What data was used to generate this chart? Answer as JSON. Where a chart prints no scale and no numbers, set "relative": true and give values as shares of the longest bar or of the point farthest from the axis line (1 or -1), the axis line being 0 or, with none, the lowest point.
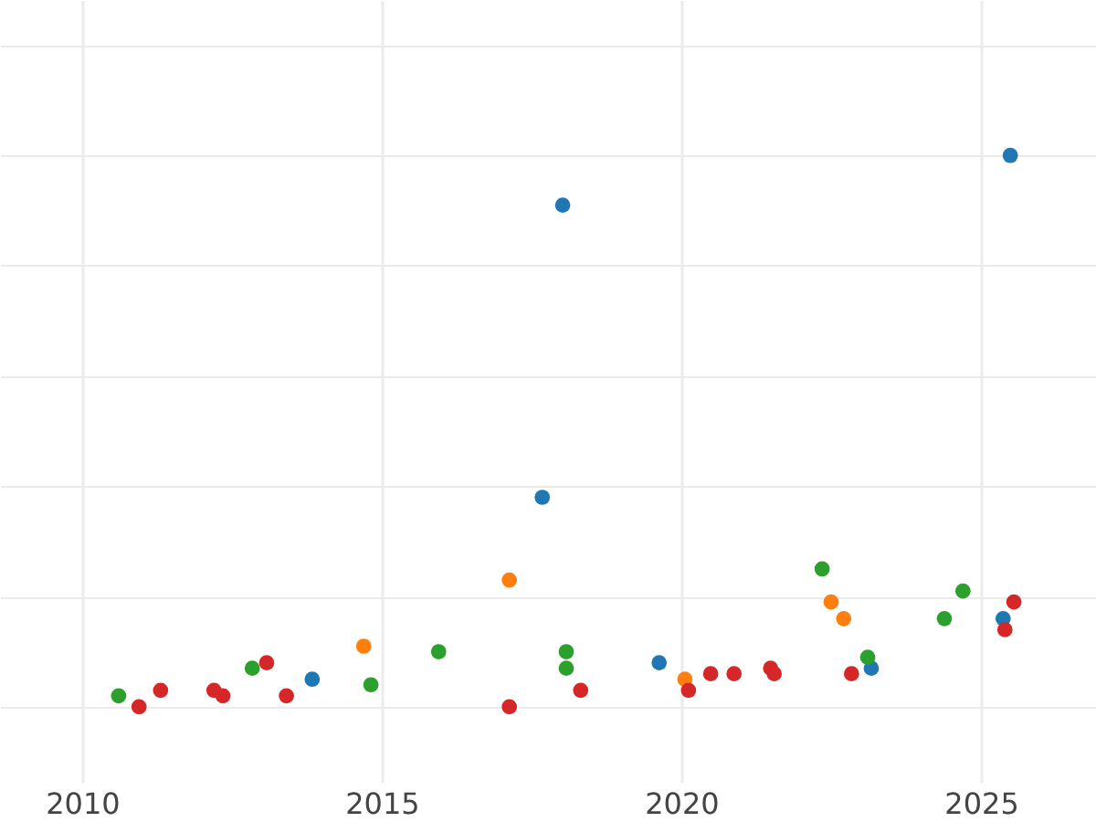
{
  "chart_data": {
    "type": "scatter",
    "relative": true,
    "xlim": [
      2008.63,
      2026.92
    ],
    "xticks": [
      2010,
      2015,
      2020,
      2025
    ],
    "grid": true,
    "tick_labels": "x",
    "marker": "circle",
    "series": [
      {
        "color": "#1f77b4",
        "x": [
          2013.84,
          2017.68,
          2018.02,
          2019.63,
          2023.17,
          2025.37,
          2025.49
        ],
        "values": [
          0.05,
          0.38,
          0.91,
          0.08,
          0.07,
          0.16,
          1
        ]
      },
      {
        "color": "#ff7f0e",
        "x": [
          2014.7,
          2017.13,
          2020.06,
          2022.5,
          2022.71
        ],
        "values": [
          0.11,
          0.23,
          0.05,
          0.19,
          0.16
        ]
      },
      {
        "color": "#2ca02c",
        "x": [
          2010.61,
          2012.84,
          2014.82,
          2015.95,
          2018.08,
          2018.08,
          2022.35,
          2023.11,
          2024.39,
          2024.7
        ],
        "values": [
          0.02,
          0.07,
          0.04,
          0.1,
          0.1,
          0.07,
          0.25,
          0.09,
          0.16,
          0.21
        ]
      },
      {
        "color": "#d62728",
        "x": [
          2010.95,
          2011.31,
          2012.2,
          2012.35,
          2013.08,
          2013.41,
          2017.13,
          2018.32,
          2020.12,
          2020.49,
          2020.88,
          2021.49,
          2021.55,
          2022.84,
          2025.4,
          2025.55
        ],
        "values": [
          0,
          0.03,
          0.03,
          0.02,
          0.08,
          0.02,
          0,
          0.03,
          0.03,
          0.06,
          0.06,
          0.07,
          0.06,
          0.06,
          0.14,
          0.19
        ]
      }
    ]
  }
}
